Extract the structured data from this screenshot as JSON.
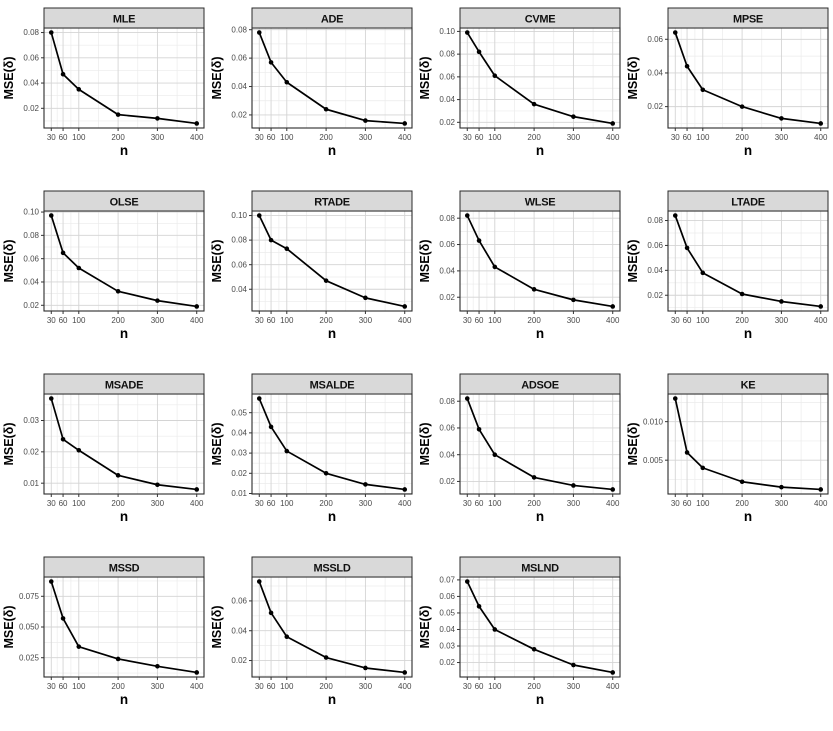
{
  "figure": {
    "description": "Simulation facet grid of MSE(delta) versus sample size n for 15 estimators",
    "xlabel": "n",
    "ylabel": "MSE(δ)"
  },
  "style": {
    "page_bg": "#ffffff",
    "strip_bg": "#d9d9d9",
    "strip_border": "#2b2b2b",
    "panel_bg": "#ffffff",
    "panel_border": "#2b2b2b",
    "grid_major": "#d4d4d4",
    "grid_minor": "#ebebeb",
    "line_color": "#000000",
    "point_color": "#000000",
    "tick_label_color": "#4a4a4a",
    "axis_title_color": "#000000",
    "strip_text_color": "#111111"
  },
  "chart_data": [
    {
      "type": "line",
      "title": "MLE",
      "xlabel": "n",
      "ylabel": "MSE(δ)",
      "xticks": [
        30,
        60,
        100,
        200,
        300,
        400
      ],
      "x": [
        30,
        60,
        100,
        200,
        300,
        400
      ],
      "y": [
        0.08,
        0.047,
        0.035,
        0.015,
        0.012,
        0.008
      ],
      "yticks": [
        "0.02",
        "0.04",
        "0.06",
        "0.08"
      ]
    },
    {
      "type": "line",
      "title": "ADE",
      "xlabel": "n",
      "ylabel": "MSE(δ)",
      "xticks": [
        30,
        60,
        100,
        200,
        300,
        400
      ],
      "x": [
        30,
        60,
        100,
        200,
        300,
        400
      ],
      "y": [
        0.078,
        0.057,
        0.043,
        0.024,
        0.016,
        0.014
      ],
      "yticks": [
        "0.02",
        "0.04",
        "0.06",
        "0.08"
      ]
    },
    {
      "type": "line",
      "title": "CVME",
      "xlabel": "n",
      "ylabel": "MSE(δ)",
      "xticks": [
        30,
        60,
        100,
        200,
        300,
        400
      ],
      "x": [
        30,
        60,
        100,
        200,
        300,
        400
      ],
      "y": [
        0.099,
        0.082,
        0.061,
        0.036,
        0.025,
        0.019
      ],
      "yticks": [
        "0.02",
        "0.04",
        "0.06",
        "0.08",
        "0.10"
      ]
    },
    {
      "type": "line",
      "title": "MPSE",
      "xlabel": "n",
      "ylabel": "MSE(δ)",
      "xticks": [
        30,
        60,
        100,
        200,
        300,
        400
      ],
      "x": [
        30,
        60,
        100,
        200,
        300,
        400
      ],
      "y": [
        0.064,
        0.044,
        0.03,
        0.02,
        0.013,
        0.01
      ],
      "yticks": [
        "0.02",
        "0.04",
        "0.06"
      ]
    },
    {
      "type": "line",
      "title": "OLSE",
      "xlabel": "n",
      "ylabel": "MSE(δ)",
      "xticks": [
        30,
        60,
        100,
        200,
        300,
        400
      ],
      "x": [
        30,
        60,
        100,
        200,
        300,
        400
      ],
      "y": [
        0.097,
        0.065,
        0.052,
        0.032,
        0.024,
        0.019
      ],
      "yticks": [
        "0.02",
        "0.04",
        "0.06",
        "0.08",
        "0.10"
      ]
    },
    {
      "type": "line",
      "title": "RTADE",
      "xlabel": "n",
      "ylabel": "MSE(δ)",
      "xticks": [
        30,
        60,
        100,
        200,
        300,
        400
      ],
      "x": [
        30,
        60,
        100,
        200,
        300,
        400
      ],
      "y": [
        0.1,
        0.08,
        0.073,
        0.047,
        0.033,
        0.026
      ],
      "yticks": [
        "0.04",
        "0.06",
        "0.08",
        "0.10"
      ]
    },
    {
      "type": "line",
      "title": "WLSE",
      "xlabel": "n",
      "ylabel": "MSE(δ)",
      "xticks": [
        30,
        60,
        100,
        200,
        300,
        400
      ],
      "x": [
        30,
        60,
        100,
        200,
        300,
        400
      ],
      "y": [
        0.082,
        0.063,
        0.043,
        0.026,
        0.018,
        0.013
      ],
      "yticks": [
        "0.02",
        "0.04",
        "0.06",
        "0.08"
      ]
    },
    {
      "type": "line",
      "title": "LTADE",
      "xlabel": "n",
      "ylabel": "MSE(δ)",
      "xticks": [
        30,
        60,
        100,
        200,
        300,
        400
      ],
      "x": [
        30,
        60,
        100,
        200,
        300,
        400
      ],
      "y": [
        0.084,
        0.058,
        0.038,
        0.021,
        0.015,
        0.011
      ],
      "yticks": [
        "0.02",
        "0.04",
        "0.06",
        "0.08"
      ]
    },
    {
      "type": "line",
      "title": "MSADE",
      "xlabel": "n",
      "ylabel": "MSE(δ)",
      "xticks": [
        30,
        60,
        100,
        200,
        300,
        400
      ],
      "x": [
        30,
        60,
        100,
        200,
        300,
        400
      ],
      "y": [
        0.037,
        0.024,
        0.0205,
        0.0125,
        0.0095,
        0.008
      ],
      "yticks": [
        "0.01",
        "0.02",
        "0.03"
      ]
    },
    {
      "type": "line",
      "title": "MSALDE",
      "xlabel": "n",
      "ylabel": "MSE(δ)",
      "xticks": [
        30,
        60,
        100,
        200,
        300,
        400
      ],
      "x": [
        30,
        60,
        100,
        200,
        300,
        400
      ],
      "y": [
        0.057,
        0.043,
        0.031,
        0.02,
        0.0145,
        0.012
      ],
      "yticks": [
        "0.01",
        "0.02",
        "0.03",
        "0.04",
        "0.05"
      ]
    },
    {
      "type": "line",
      "title": "ADSOE",
      "xlabel": "n",
      "ylabel": "MSE(δ)",
      "xticks": [
        30,
        60,
        100,
        200,
        300,
        400
      ],
      "x": [
        30,
        60,
        100,
        200,
        300,
        400
      ],
      "y": [
        0.082,
        0.059,
        0.04,
        0.023,
        0.017,
        0.014
      ],
      "yticks": [
        "0.02",
        "0.04",
        "0.06",
        "0.08"
      ]
    },
    {
      "type": "line",
      "title": "KE",
      "xlabel": "n",
      "ylabel": "MSE(δ)",
      "xticks": [
        30,
        60,
        100,
        200,
        300,
        400
      ],
      "x": [
        30,
        60,
        100,
        200,
        300,
        400
      ],
      "y": [
        0.013,
        0.006,
        0.004,
        0.0022,
        0.0015,
        0.0012
      ],
      "yticks": [
        "0.005",
        "0.010"
      ]
    },
    {
      "type": "line",
      "title": "MSSD",
      "xlabel": "n",
      "ylabel": "MSE(δ)",
      "xticks": [
        30,
        60,
        100,
        200,
        300,
        400
      ],
      "x": [
        30,
        60,
        100,
        200,
        300,
        400
      ],
      "y": [
        0.087,
        0.057,
        0.034,
        0.024,
        0.018,
        0.013
      ],
      "yticks": [
        "0.025",
        "0.050",
        "0.075"
      ]
    },
    {
      "type": "line",
      "title": "MSSLD",
      "xlabel": "n",
      "ylabel": "MSE(δ)",
      "xticks": [
        30,
        60,
        100,
        200,
        300,
        400
      ],
      "x": [
        30,
        60,
        100,
        200,
        300,
        400
      ],
      "y": [
        0.073,
        0.052,
        0.036,
        0.022,
        0.015,
        0.012
      ],
      "yticks": [
        "0.02",
        "0.04",
        "0.06"
      ]
    },
    {
      "type": "line",
      "title": "MSLND",
      "xlabel": "n",
      "ylabel": "MSE(δ)",
      "xticks": [
        30,
        60,
        100,
        200,
        300,
        400
      ],
      "x": [
        30,
        60,
        100,
        200,
        300,
        400
      ],
      "y": [
        0.069,
        0.054,
        0.04,
        0.028,
        0.0185,
        0.014
      ],
      "yticks": [
        "0.02",
        "0.03",
        "0.04",
        "0.05",
        "0.06",
        "0.07"
      ]
    }
  ]
}
